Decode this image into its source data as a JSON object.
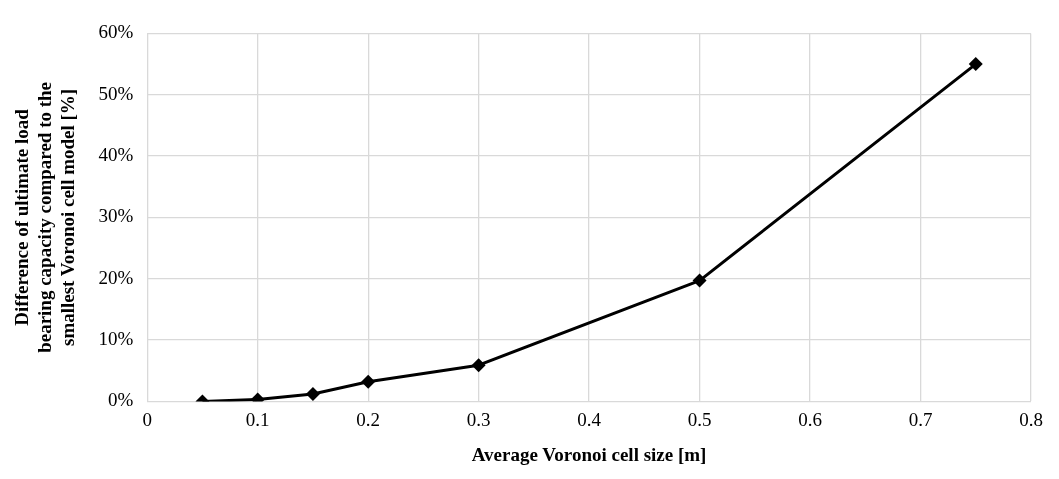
{
  "chart_data": {
    "type": "line",
    "xlabel": "Average Voronoi cell size [m]",
    "ylabel": "Difference of ultimate load bearing capacity compared to the smallest Voronoi cell model [%]",
    "x": [
      0.05,
      0.1,
      0.15,
      0.2,
      0.3,
      0.5,
      0.75
    ],
    "series": [
      {
        "color": "#000000",
        "values": [
          0,
          0.3,
          1.2,
          3.2,
          5.9,
          19.7,
          55
        ]
      }
    ],
    "xlim": [
      0,
      0.8
    ],
    "xticks": [
      0,
      0.1,
      0.2,
      0.3,
      0.4,
      0.5,
      0.6,
      0.7,
      0.8
    ],
    "ylim": [
      0,
      60
    ],
    "yticks": [
      {
        "value": 0,
        "label": "0%"
      },
      {
        "value": 10,
        "label": "10%"
      },
      {
        "value": 20,
        "label": "20%"
      },
      {
        "value": 30,
        "label": "30%"
      },
      {
        "value": 40,
        "label": "40%"
      },
      {
        "value": 50,
        "label": "50%"
      },
      {
        "value": 60,
        "label": "60%"
      }
    ],
    "grid": true,
    "legend": false,
    "marker": "diamond",
    "line_style": "solid"
  }
}
